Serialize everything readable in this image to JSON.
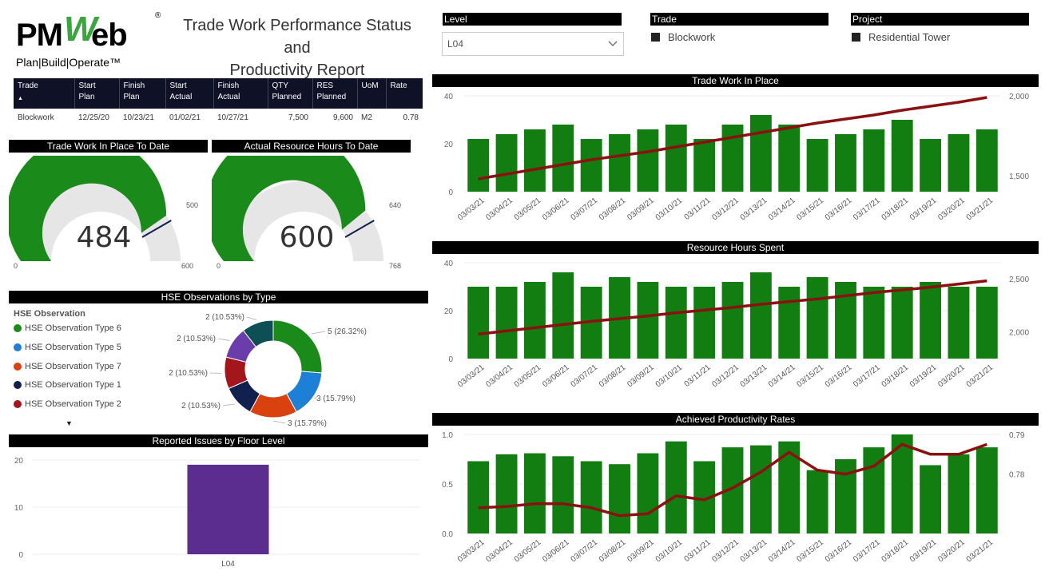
{
  "header": {
    "logo_main": "PMWeb",
    "logo_pm": "PM",
    "logo_w": "W",
    "logo_eb": "eb",
    "logo_reg": "®",
    "logo_sub": "Plan|Build|Operate™",
    "title_line1": "Trade Work Performance Status and",
    "title_line2": "Productivity Report"
  },
  "slicers": {
    "level": {
      "label": "Level",
      "value": "L04"
    },
    "trade": {
      "label": "Trade",
      "value": "Blockwork"
    },
    "project": {
      "label": "Project",
      "value": "Residential Tower"
    }
  },
  "trade_table": {
    "headers": [
      {
        "l1": "Trade",
        "l2": "▲"
      },
      {
        "l1": "Start",
        "l2": "Plan"
      },
      {
        "l1": "Finish",
        "l2": "Plan"
      },
      {
        "l1": "Start",
        "l2": "Actual"
      },
      {
        "l1": "Finish",
        "l2": "Actual"
      },
      {
        "l1": "QTY",
        "l2": "Planned"
      },
      {
        "l1": "RES",
        "l2": "Planned"
      },
      {
        "l1": "UoM",
        "l2": ""
      },
      {
        "l1": "Rate",
        "l2": ""
      }
    ],
    "row": [
      "Blockwork",
      "12/25/20",
      "10/23/21",
      "01/02/21",
      "10/27/21",
      "7,500",
      "9,600",
      "M2",
      "0.78"
    ]
  },
  "gauges": [
    {
      "title": "Trade Work In Place To Date",
      "value": "484",
      "min": "0",
      "max": "600",
      "target": "500",
      "fraction": 0.8067,
      "target_fraction": 0.8333
    },
    {
      "title": "Actual Resource Hours To Date",
      "value": "600",
      "min": "0",
      "max": "768",
      "target": "640",
      "fraction": 0.78125,
      "target_fraction": 0.8333
    }
  ],
  "hse": {
    "title": "HSE Observations by Type",
    "legend_title": "HSE Observation",
    "legend": [
      {
        "label": "HSE Observation Type 6",
        "color": "#1a8a1a"
      },
      {
        "label": "HSE Observation Type 5",
        "color": "#1e7fd6"
      },
      {
        "label": "HSE Observation Type 7",
        "color": "#d9410f"
      },
      {
        "label": "HSE Observation Type 1",
        "color": "#12204f"
      },
      {
        "label": "HSE Observation Type 2",
        "color": "#a3161b"
      }
    ],
    "more_arrow": "▼",
    "slices": [
      {
        "value": 5,
        "label": "5 (26.32%)",
        "color": "#1a8a1a"
      },
      {
        "value": 3,
        "label": "3 (15.79%)",
        "color": "#1e7fd6"
      },
      {
        "value": 3,
        "label": "3 (15.79%)",
        "color": "#d9410f"
      },
      {
        "value": 2,
        "label": "2 (10.53%)",
        "color": "#12204f"
      },
      {
        "value": 2,
        "label": "2 (10.53%)",
        "color": "#a3161b"
      },
      {
        "value": 2,
        "label": "2 (10.53%)",
        "color": "#6a3daa"
      },
      {
        "value": 2,
        "label": "2 (10.53%)",
        "color": "#0e4e55"
      }
    ]
  },
  "chart_data": [
    {
      "type": "bar",
      "title": "Trade Work In Place",
      "categories": [
        "03/03/21",
        "03/04/21",
        "03/05/21",
        "03/06/21",
        "03/07/21",
        "03/08/21",
        "03/09/21",
        "03/10/21",
        "03/11/21",
        "03/12/21",
        "03/13/21",
        "03/14/21",
        "03/15/21",
        "03/16/21",
        "03/17/21",
        "03/18/21",
        "03/19/21",
        "03/20/21",
        "03/21/21"
      ],
      "series": [
        {
          "values": [
            22,
            24,
            26,
            28,
            22,
            24,
            26,
            28,
            22,
            28,
            32,
            28,
            22,
            24,
            26,
            30,
            22,
            24,
            26
          ],
          "color": "#127e12"
        },
        {
          "values": [
            1480,
            1510,
            1540,
            1570,
            1600,
            1625,
            1650,
            1680,
            1710,
            1740,
            1770,
            1800,
            1830,
            1855,
            1880,
            1910,
            1935,
            1960,
            1990
          ],
          "color": "#8b1010",
          "axis": "right"
        }
      ],
      "ylim": [
        0,
        40
      ],
      "yticks": [
        "0",
        "20",
        "40"
      ],
      "y2lim": [
        1400,
        2000
      ],
      "y2ticks": [
        "1,500",
        "2,000"
      ]
    },
    {
      "type": "bar",
      "title": "Resource Hours Spent",
      "categories": [
        "03/03/21",
        "03/04/21",
        "03/05/21",
        "03/06/21",
        "03/07/21",
        "03/08/21",
        "03/09/21",
        "03/10/21",
        "03/11/21",
        "03/12/21",
        "03/13/21",
        "03/14/21",
        "03/15/21",
        "03/16/21",
        "03/17/21",
        "03/18/21",
        "03/19/21",
        "03/20/21",
        "03/21/21"
      ],
      "series": [
        {
          "values": [
            30,
            30,
            32,
            36,
            30,
            34,
            32,
            30,
            30,
            32,
            36,
            30,
            34,
            32,
            30,
            30,
            32,
            30,
            30
          ],
          "color": "#127e12"
        },
        {
          "values": [
            1980,
            2010,
            2040,
            2070,
            2100,
            2125,
            2150,
            2180,
            2205,
            2230,
            2260,
            2285,
            2310,
            2340,
            2370,
            2395,
            2420,
            2450,
            2480
          ],
          "color": "#8b1010",
          "axis": "right"
        }
      ],
      "ylim": [
        0,
        40
      ],
      "yticks": [
        "0",
        "20",
        "40"
      ],
      "y2lim": [
        1750,
        2650
      ],
      "y2ticks": [
        "2,000",
        "2,500"
      ]
    },
    {
      "type": "bar",
      "title": "Achieved Productivity Rates",
      "categories": [
        "03/03/21",
        "03/04/21",
        "03/05/21",
        "03/06/21",
        "03/07/21",
        "03/08/21",
        "03/09/21",
        "03/10/21",
        "03/11/21",
        "03/12/21",
        "03/13/21",
        "03/14/21",
        "03/15/21",
        "03/16/21",
        "03/17/21",
        "03/18/21",
        "03/19/21",
        "03/20/21",
        "03/21/21"
      ],
      "series": [
        {
          "values": [
            0.73,
            0.8,
            0.81,
            0.78,
            0.73,
            0.7,
            0.81,
            0.93,
            0.73,
            0.87,
            0.89,
            0.93,
            0.64,
            0.75,
            0.87,
            1.0,
            0.69,
            0.8,
            0.87
          ],
          "color": "#127e12"
        },
        {
          "values": [
            0.7715,
            0.7718,
            0.7725,
            0.7725,
            0.7715,
            0.7695,
            0.77,
            0.7745,
            0.7735,
            0.7765,
            0.7805,
            0.7855,
            0.781,
            0.78,
            0.782,
            0.7875,
            0.785,
            0.785,
            0.7875
          ],
          "color": "#8b1010",
          "axis": "right"
        }
      ],
      "ylim": [
        0,
        1.0
      ],
      "yticks": [
        "0.0",
        "0.5",
        "1.0"
      ],
      "y2lim": [
        0.765,
        0.79
      ],
      "y2ticks": [
        "0.78",
        "0.79"
      ]
    },
    {
      "type": "bar",
      "title": "Reported Issues by Floor Level",
      "categories": [
        "L04"
      ],
      "values": [
        19
      ],
      "color": "#5b2d8e",
      "ylim": [
        0,
        20
      ],
      "yticks": [
        "0",
        "10",
        "20"
      ]
    }
  ]
}
